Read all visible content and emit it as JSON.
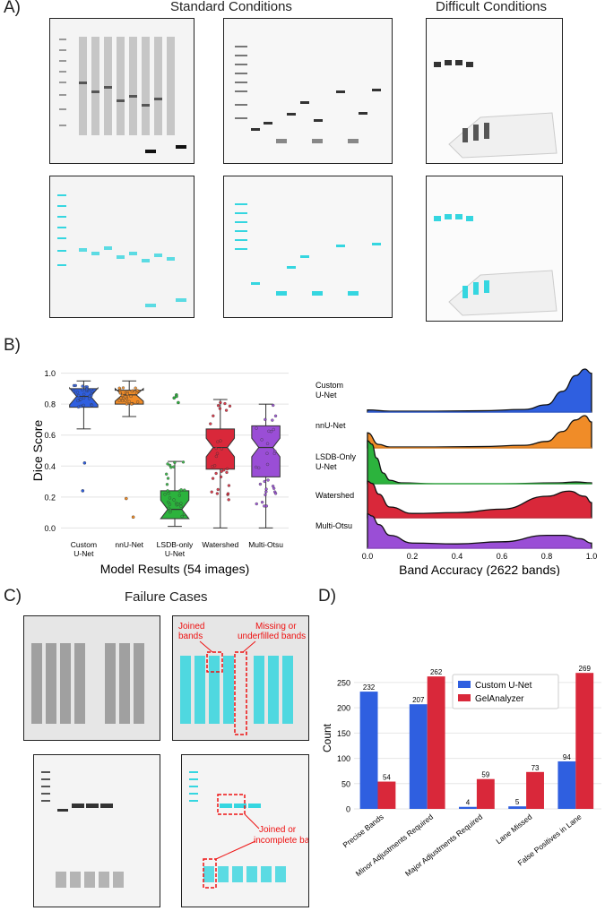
{
  "panelA": {
    "label": "A)",
    "standard_title": "Standard Conditions",
    "difficult_title": "Difficult Conditions"
  },
  "panelB": {
    "label": "B)"
  },
  "panelC": {
    "label": "C)",
    "title": "Failure Cases",
    "annotations": {
      "joined": "Joined\nbands",
      "missing": "Missing or\nunderfilled bands",
      "joined_incomplete": "Joined or\nincomplete bands"
    }
  },
  "panelD": {
    "label": "D)"
  },
  "colors": {
    "blue": "#2f5fe0",
    "orange": "#f08c28",
    "green": "#2cb33d",
    "red": "#d9283a",
    "purple": "#9a4ed6",
    "cyan": "#35d6e0",
    "annot": "#e11111"
  },
  "chart_data": [
    {
      "type": "box",
      "title": "",
      "xlabel": "Model Results (54 images)",
      "ylabel": "Dice Score",
      "ylim": [
        -0.05,
        1.05
      ],
      "yticks": [
        "0.0",
        "0.2",
        "0.4",
        "0.6",
        "0.8",
        "1.0"
      ],
      "categories": [
        "Custom\nU-Net",
        "nnU-Net",
        "LSDB-only\nU-Net",
        "Watershed",
        "Multi-Otsu"
      ],
      "boxes": [
        {
          "name": "Custom U-Net",
          "min": 0.64,
          "q1": 0.78,
          "median": 0.85,
          "q3": 0.9,
          "max": 0.95,
          "outliers": [
            0.42,
            0.24
          ]
        },
        {
          "name": "nnU-Net",
          "min": 0.72,
          "q1": 0.8,
          "median": 0.86,
          "q3": 0.89,
          "max": 0.95,
          "outliers": [
            0.19,
            0.07
          ]
        },
        {
          "name": "LSDB-only U-Net",
          "min": 0.01,
          "q1": 0.06,
          "median": 0.12,
          "q3": 0.24,
          "max": 0.43,
          "outliers": [
            0.86,
            0.85,
            0.84,
            0.81
          ]
        },
        {
          "name": "Watershed",
          "min": 0.0,
          "q1": 0.38,
          "median": 0.52,
          "q3": 0.64,
          "max": 0.83,
          "outliers": []
        },
        {
          "name": "Multi-Otsu",
          "min": 0.0,
          "q1": 0.33,
          "median": 0.52,
          "q3": 0.66,
          "max": 0.8,
          "outliers": []
        }
      ]
    },
    {
      "type": "ridgeline",
      "title": "",
      "xlabel": "Band Accuracy (2622 bands)",
      "ylabel": "",
      "xlim": [
        0,
        1
      ],
      "xticks": [
        "0.0",
        "0.2",
        "0.4",
        "0.6",
        "0.8",
        "1.0"
      ],
      "series": [
        {
          "name": "Custom\nU-Net",
          "x": [
            0.0,
            0.1,
            0.3,
            0.5,
            0.7,
            0.8,
            0.87,
            0.93,
            0.97,
            1.0
          ],
          "density": [
            0.05,
            0.02,
            0.02,
            0.03,
            0.06,
            0.17,
            0.48,
            0.85,
            1.0,
            0.9
          ]
        },
        {
          "name": "nnU-Net",
          "x": [
            0.0,
            0.05,
            0.1,
            0.3,
            0.5,
            0.7,
            0.8,
            0.87,
            0.93,
            0.97,
            1.0
          ],
          "density": [
            0.35,
            0.08,
            0.02,
            0.02,
            0.03,
            0.06,
            0.15,
            0.38,
            0.65,
            0.75,
            0.6
          ]
        },
        {
          "name": "LSDB-Only\nU-Net",
          "x": [
            0.0,
            0.02,
            0.04,
            0.07,
            0.1,
            0.15,
            0.3,
            0.6,
            0.85,
            0.93,
            1.0
          ],
          "density": [
            1.0,
            0.92,
            0.6,
            0.25,
            0.08,
            0.02,
            0.0,
            0.0,
            0.02,
            0.04,
            0.02
          ]
        },
        {
          "name": "Watershed",
          "x": [
            0.0,
            0.02,
            0.05,
            0.1,
            0.2,
            0.4,
            0.6,
            0.8,
            0.9,
            0.97,
            1.0
          ],
          "density": [
            0.85,
            0.8,
            0.55,
            0.25,
            0.1,
            0.12,
            0.2,
            0.5,
            0.62,
            0.5,
            0.35
          ]
        },
        {
          "name": "Multi-Otsu",
          "x": [
            0.0,
            0.02,
            0.05,
            0.1,
            0.2,
            0.4,
            0.6,
            0.8,
            0.88,
            0.95,
            1.0
          ],
          "density": [
            0.8,
            0.75,
            0.55,
            0.3,
            0.12,
            0.1,
            0.15,
            0.3,
            0.3,
            0.22,
            0.12
          ]
        }
      ]
    },
    {
      "type": "bar",
      "title": "",
      "xlabel": "",
      "ylabel": "Count",
      "ylim": [
        0,
        280
      ],
      "yticks": [
        "0",
        "50",
        "100",
        "150",
        "200",
        "250"
      ],
      "categories": [
        "Precise Bands",
        "Minor Adjustments Required",
        "Major Adjustments Required",
        "Lane Missed",
        "False Positives in Lane"
      ],
      "series": [
        {
          "name": "Custom U-Net",
          "values": [
            232,
            207,
            4,
            5,
            94
          ]
        },
        {
          "name": "GelAnalyzer",
          "values": [
            54,
            262,
            59,
            73,
            269
          ]
        }
      ],
      "legend": "top-center"
    }
  ]
}
